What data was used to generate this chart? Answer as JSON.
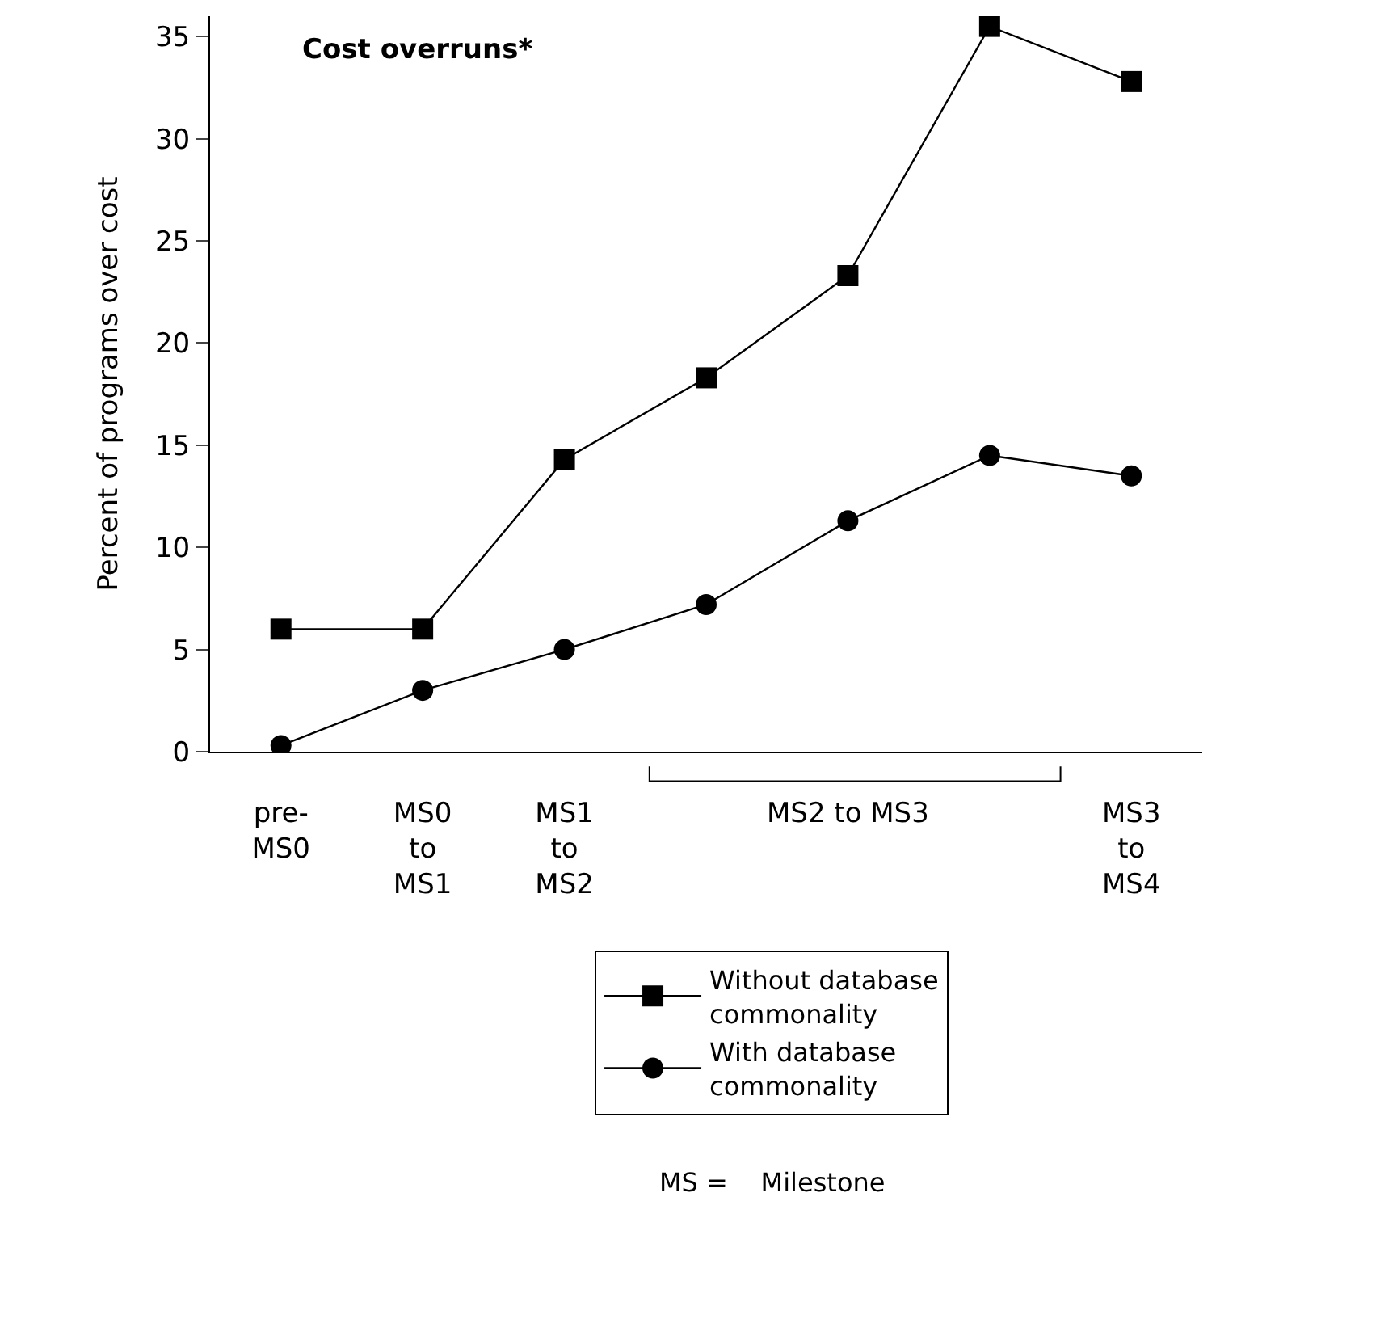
{
  "chart_data": {
    "type": "line",
    "title": "Cost overruns*",
    "ylabel": "Percent of programs over cost",
    "categories": [
      "pre-\nMS0",
      "MS0\nto\nMS1",
      "MS1\nto\nMS2",
      null,
      "MS2 to MS3",
      null,
      "MS3\nto\nMS4"
    ],
    "series": [
      {
        "name": "Without database\ncommonality",
        "color": "#000000",
        "marker": "square",
        "values": [
          6,
          6,
          14.3,
          18.3,
          23.3,
          35.5,
          32.8
        ]
      },
      {
        "name": "With database\ncommonality",
        "color": "#000000",
        "marker": "circle",
        "values": [
          0.3,
          3,
          5,
          7.2,
          11.3,
          14.5,
          13.5
        ]
      }
    ],
    "ylim": [
      0,
      36
    ],
    "yticks": [
      0,
      5,
      10,
      15,
      20,
      25,
      30,
      35
    ],
    "legend": "bottom",
    "line_style": "solid",
    "annotations": [
      "MS =    Milestone"
    ]
  }
}
